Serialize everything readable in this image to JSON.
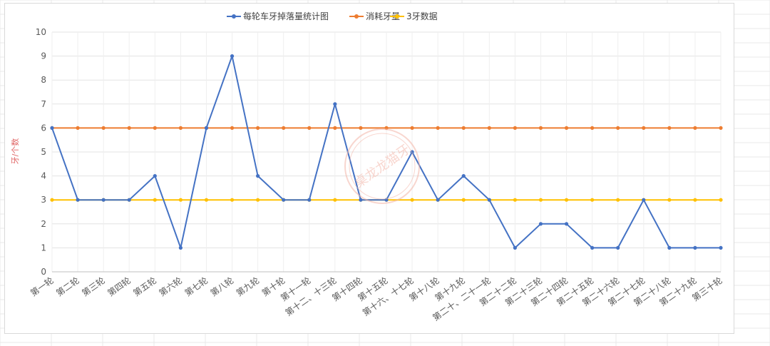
{
  "watermark_text": "桌龙龙猫牙",
  "chart_data": {
    "type": "line",
    "title": "",
    "xlabel": "",
    "ylabel": "牙/个数",
    "ylim": [
      0,
      10
    ],
    "yticks": [
      0,
      1,
      2,
      3,
      4,
      5,
      6,
      7,
      8,
      9,
      10
    ],
    "grid": true,
    "legend_position": "top",
    "categories": [
      "第一轮",
      "第二轮",
      "第三轮",
      "第四轮",
      "第五轮",
      "第六轮",
      "第七轮",
      "第八轮",
      "第九轮",
      "第十轮",
      "第十一轮",
      "第十二、十三轮",
      "第十四轮",
      "第十五轮",
      "第十六、十七轮",
      "第十八轮",
      "第十九轮",
      "第二十、二十一轮",
      "第二十二轮",
      "第二十三轮",
      "第二十四轮",
      "第二十五轮",
      "第二十六轮",
      "第二十七轮",
      "第二十八轮",
      "第二十九轮",
      "第三十轮"
    ],
    "series": [
      {
        "name": "每轮车牙掉落量统计图",
        "color": "#4472c4",
        "values": [
          6,
          3,
          3,
          3,
          4,
          1,
          6,
          9,
          4,
          3,
          3,
          7,
          3,
          3,
          5,
          3,
          4,
          3,
          1,
          2,
          2,
          1,
          1,
          3,
          1,
          1,
          1
        ]
      },
      {
        "name": "消耗牙量",
        "color": "#ed7d31",
        "values": [
          6,
          6,
          6,
          6,
          6,
          6,
          6,
          6,
          6,
          6,
          6,
          6,
          6,
          6,
          6,
          6,
          6,
          6,
          6,
          6,
          6,
          6,
          6,
          6,
          6,
          6,
          6
        ]
      },
      {
        "name": "3牙数据",
        "color": "#ffc000",
        "values": [
          3,
          3,
          3,
          3,
          3,
          3,
          3,
          3,
          3,
          3,
          3,
          3,
          3,
          3,
          3,
          3,
          3,
          3,
          3,
          3,
          3,
          3,
          3,
          3,
          3,
          3,
          3
        ]
      }
    ]
  }
}
